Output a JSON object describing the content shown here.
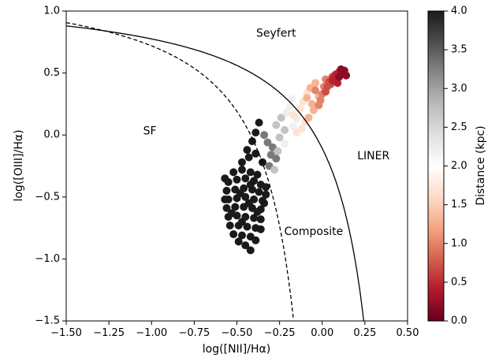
{
  "chart_data": {
    "type": "scatter",
    "xlabel": "log([NII]/Hα)",
    "ylabel": "log([OIII]/Hα)",
    "xlim": [
      -1.5,
      0.5
    ],
    "ylim": [
      -1.5,
      1.0
    ],
    "xticks": [
      {
        "v": -1.5,
        "label": "−1.50"
      },
      {
        "v": -1.25,
        "label": "−1.25"
      },
      {
        "v": -1.0,
        "label": "−1.00"
      },
      {
        "v": -0.75,
        "label": "−0.75"
      },
      {
        "v": -0.5,
        "label": "−0.50"
      },
      {
        "v": -0.25,
        "label": "−0.25"
      },
      {
        "v": 0.0,
        "label": "0.00"
      },
      {
        "v": 0.25,
        "label": "0.25"
      },
      {
        "v": 0.5,
        "label": "0.50"
      }
    ],
    "yticks": [
      {
        "v": -1.5,
        "label": "−1.5"
      },
      {
        "v": -1.0,
        "label": "−1.0"
      },
      {
        "v": -0.5,
        "label": "−0.5"
      },
      {
        "v": 0.0,
        "label": "0.0"
      },
      {
        "v": 0.5,
        "label": "0.5"
      },
      {
        "v": 1.0,
        "label": "1.0"
      }
    ],
    "annotations": [
      {
        "text": "Seyfert",
        "x": -0.27,
        "y": 0.82
      },
      {
        "text": "SF",
        "x": -1.01,
        "y": 0.03
      },
      {
        "text": "LINER",
        "x": 0.3,
        "y": -0.17
      },
      {
        "text": "Composite",
        "x": -0.05,
        "y": -0.78
      }
    ],
    "curves": [
      {
        "name": "Kewley",
        "style": "solid",
        "formula": "0.61/(x-0.47)+1.19",
        "x_min": -1.5,
        "x_max": 0.25
      },
      {
        "name": "Kauffmann",
        "style": "dashed",
        "formula": "0.61/(x-0.05)+1.3",
        "x_min": -1.5,
        "x_max": -0.17
      }
    ],
    "colorbar": {
      "label": "Distance (kpc)",
      "cmap": "RdGy",
      "range": [
        0.0,
        4.0
      ],
      "ticks": [
        {
          "v": 0.0,
          "label": "0.0"
        },
        {
          "v": 0.5,
          "label": "0.5"
        },
        {
          "v": 1.0,
          "label": "1.0"
        },
        {
          "v": 1.5,
          "label": "1.5"
        },
        {
          "v": 2.0,
          "label": "2.0"
        },
        {
          "v": 2.5,
          "label": "2.5"
        },
        {
          "v": 3.0,
          "label": "3.0"
        },
        {
          "v": 3.5,
          "label": "3.5"
        },
        {
          "v": 4.0,
          "label": "4.0"
        }
      ],
      "stops": [
        {
          "v": 0.0,
          "color": "#67001f"
        },
        {
          "v": 0.4,
          "color": "#b2182b"
        },
        {
          "v": 0.8,
          "color": "#d6604d"
        },
        {
          "v": 1.2,
          "color": "#f4a582"
        },
        {
          "v": 1.6,
          "color": "#fddbc7"
        },
        {
          "v": 2.0,
          "color": "#ffffff"
        },
        {
          "v": 2.4,
          "color": "#e0e0e0"
        },
        {
          "v": 2.8,
          "color": "#bababa"
        },
        {
          "v": 3.2,
          "color": "#878787"
        },
        {
          "v": 3.6,
          "color": "#4d4d4d"
        },
        {
          "v": 4.0,
          "color": "#1a1a1a"
        }
      ]
    },
    "series": [
      {
        "distance": 4.0,
        "points": [
          [
            -0.52,
            -0.3
          ],
          [
            -0.47,
            -0.28
          ],
          [
            -0.42,
            -0.3
          ],
          [
            -0.38,
            -0.32
          ],
          [
            -0.55,
            -0.38
          ],
          [
            -0.5,
            -0.36
          ],
          [
            -0.45,
            -0.35
          ],
          [
            -0.4,
            -0.37
          ],
          [
            -0.36,
            -0.4
          ],
          [
            -0.56,
            -0.45
          ],
          [
            -0.51,
            -0.44
          ],
          [
            -0.46,
            -0.43
          ],
          [
            -0.41,
            -0.44
          ],
          [
            -0.37,
            -0.46
          ],
          [
            -0.33,
            -0.48
          ],
          [
            -0.55,
            -0.52
          ],
          [
            -0.5,
            -0.51
          ],
          [
            -0.45,
            -0.5
          ],
          [
            -0.4,
            -0.52
          ],
          [
            -0.35,
            -0.53
          ],
          [
            -0.56,
            -0.59
          ],
          [
            -0.51,
            -0.58
          ],
          [
            -0.46,
            -0.58
          ],
          [
            -0.41,
            -0.59
          ],
          [
            -0.36,
            -0.6
          ],
          [
            -0.55,
            -0.66
          ],
          [
            -0.5,
            -0.65
          ],
          [
            -0.45,
            -0.66
          ],
          [
            -0.4,
            -0.67
          ],
          [
            -0.36,
            -0.68
          ],
          [
            -0.54,
            -0.73
          ],
          [
            -0.49,
            -0.73
          ],
          [
            -0.44,
            -0.74
          ],
          [
            -0.39,
            -0.75
          ],
          [
            -0.52,
            -0.8
          ],
          [
            -0.47,
            -0.81
          ],
          [
            -0.42,
            -0.82
          ],
          [
            -0.45,
            -0.89
          ],
          [
            -0.42,
            -0.93
          ],
          [
            -0.47,
            -0.22
          ],
          [
            -0.43,
            -0.18
          ],
          [
            -0.44,
            -0.12
          ],
          [
            -0.41,
            -0.05
          ],
          [
            -0.39,
            0.02
          ],
          [
            -0.37,
            0.1
          ],
          [
            -0.39,
            -0.15
          ],
          [
            -0.35,
            -0.22
          ],
          [
            -0.34,
            -0.55
          ],
          [
            -0.39,
            -0.85
          ],
          [
            -0.49,
            -0.86
          ],
          [
            -0.53,
            -0.63
          ],
          [
            -0.57,
            -0.52
          ],
          [
            -0.42,
            -0.4
          ],
          [
            -0.48,
            -0.47
          ],
          [
            -0.43,
            -0.55
          ],
          [
            -0.38,
            -0.62
          ],
          [
            -0.47,
            -0.7
          ],
          [
            -0.33,
            -0.42
          ],
          [
            -0.57,
            -0.35
          ],
          [
            -0.36,
            -0.76
          ]
        ]
      },
      {
        "distance": 3.3,
        "points": [
          [
            -0.32,
            -0.06
          ],
          [
            -0.29,
            -0.1
          ],
          [
            -0.27,
            -0.19
          ],
          [
            -0.3,
            -0.16
          ],
          [
            -0.31,
            -0.25
          ],
          [
            -0.34,
            0.0
          ]
        ]
      },
      {
        "distance": 2.7,
        "points": [
          [
            -0.27,
            0.08
          ],
          [
            -0.24,
            0.14
          ],
          [
            -0.25,
            -0.02
          ],
          [
            -0.28,
            -0.28
          ],
          [
            -0.26,
            -0.13
          ],
          [
            -0.22,
            0.04
          ]
        ]
      },
      {
        "distance": 2.2,
        "points": [
          [
            -0.21,
            0.18
          ],
          [
            -0.19,
            0.23
          ],
          [
            -0.17,
            0.07
          ],
          [
            -0.22,
            -0.07
          ],
          [
            -0.18,
            0.29
          ],
          [
            -0.15,
            0.13
          ]
        ]
      },
      {
        "distance": 1.7,
        "points": [
          [
            -0.13,
            0.21
          ],
          [
            -0.11,
            0.27
          ],
          [
            -0.15,
            0.02
          ],
          [
            -0.1,
            0.1
          ],
          [
            -0.09,
            0.34
          ],
          [
            -0.17,
            0.16
          ],
          [
            -0.12,
            0.05
          ]
        ]
      },
      {
        "distance": 1.3,
        "points": [
          [
            -0.08,
            0.14
          ],
          [
            -0.05,
            0.2
          ],
          [
            -0.07,
            0.38
          ],
          [
            -0.02,
            0.31
          ],
          [
            -0.06,
            0.25
          ],
          [
            -0.04,
            0.42
          ],
          [
            -0.09,
            0.3
          ]
        ]
      },
      {
        "distance": 1.0,
        "points": [
          [
            -0.02,
            0.24
          ],
          [
            0.0,
            0.33
          ],
          [
            0.01,
            0.39
          ],
          [
            -0.04,
            0.36
          ],
          [
            0.02,
            0.45
          ],
          [
            -0.01,
            0.28
          ]
        ]
      },
      {
        "distance": 0.7,
        "points": [
          [
            0.03,
            0.39
          ],
          [
            0.04,
            0.43
          ],
          [
            0.06,
            0.47
          ],
          [
            0.02,
            0.35
          ],
          [
            0.05,
            0.41
          ]
        ]
      },
      {
        "distance": 0.45,
        "points": [
          [
            0.07,
            0.46
          ],
          [
            0.08,
            0.49
          ],
          [
            0.1,
            0.51
          ],
          [
            0.06,
            0.44
          ],
          [
            0.09,
            0.42
          ]
        ]
      },
      {
        "distance": 0.2,
        "points": [
          [
            0.11,
            0.53
          ],
          [
            0.12,
            0.5
          ],
          [
            0.13,
            0.52
          ],
          [
            0.1,
            0.47
          ],
          [
            0.14,
            0.48
          ]
        ]
      }
    ]
  }
}
